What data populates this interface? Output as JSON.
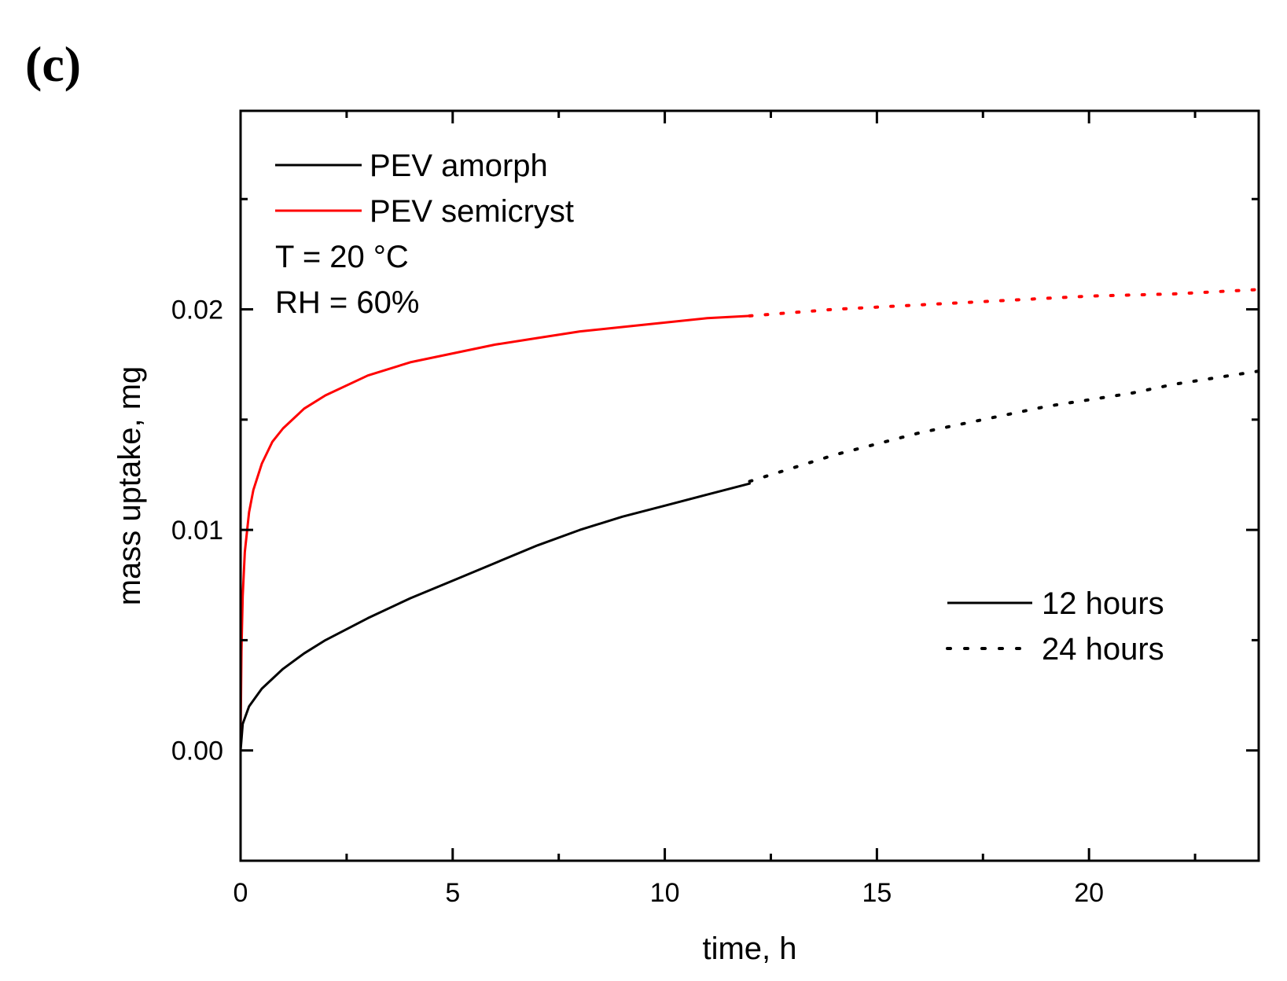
{
  "panel_label": "(c)",
  "chart_data": {
    "type": "line",
    "title": "",
    "xlabel": "time, h",
    "ylabel": "mass uptake, mg",
    "xlim": [
      0,
      24
    ],
    "ylim": [
      -0.005,
      0.029
    ],
    "x_ticks": [
      0,
      5,
      10,
      15,
      20
    ],
    "x_tick_labels": [
      "0",
      "5",
      "10",
      "15",
      "20"
    ],
    "x_minor_ticks": [
      2.5,
      7.5,
      12.5,
      17.5,
      22.5
    ],
    "y_ticks": [
      0.0,
      0.01,
      0.02
    ],
    "y_tick_labels": [
      "0.00",
      "0.01",
      "0.02"
    ],
    "y_minor_ticks": [
      0.005,
      0.015,
      0.025
    ],
    "grid": false,
    "series_legend": {
      "placement": "top-left",
      "entries": [
        {
          "name": "PEV amorph",
          "color": "#000000"
        },
        {
          "name": "PEV semicryst",
          "color": "#ff0000"
        }
      ]
    },
    "annotations": [
      "T = 20 °C",
      "RH = 60%"
    ],
    "style_legend": {
      "placement": "center-right",
      "entries": [
        {
          "name": "12 hours",
          "style": "solid"
        },
        {
          "name": "24 hours",
          "style": "dotted"
        }
      ]
    },
    "series": [
      {
        "name": "PEV amorph",
        "color": "#000000",
        "segments": [
          {
            "style": "solid",
            "x": [
              0,
              0.05,
              0.2,
              0.5,
              1,
              1.5,
              2,
              3,
              4,
              5,
              6,
              7,
              8,
              9,
              10,
              11,
              12
            ],
            "y": [
              0.0,
              0.0012,
              0.002,
              0.0028,
              0.0037,
              0.0044,
              0.005,
              0.006,
              0.0069,
              0.0077,
              0.0085,
              0.0093,
              0.01,
              0.0106,
              0.0111,
              0.0116,
              0.0121
            ]
          },
          {
            "style": "dotted",
            "x": [
              12,
              13,
              14,
              15,
              16,
              17,
              18,
              19,
              20,
              21,
              22,
              23,
              24
            ],
            "y": [
              0.0122,
              0.0128,
              0.0134,
              0.0139,
              0.0144,
              0.0148,
              0.0152,
              0.0156,
              0.0159,
              0.0162,
              0.0166,
              0.0169,
              0.0172
            ]
          }
        ]
      },
      {
        "name": "PEV semicryst",
        "color": "#ff0000",
        "segments": [
          {
            "style": "solid",
            "x": [
              0,
              0.02,
              0.05,
              0.1,
              0.2,
              0.3,
              0.5,
              0.75,
              1,
              1.5,
              2,
              3,
              4,
              5,
              6,
              7,
              8,
              9,
              10,
              11,
              12
            ],
            "y": [
              0.0005,
              0.0045,
              0.007,
              0.009,
              0.0108,
              0.0118,
              0.013,
              0.014,
              0.0146,
              0.0155,
              0.0161,
              0.017,
              0.0176,
              0.018,
              0.0184,
              0.0187,
              0.019,
              0.0192,
              0.0194,
              0.0196,
              0.0197
            ]
          },
          {
            "style": "dotted",
            "x": [
              12,
              14,
              16,
              18,
              20,
              22,
              24
            ],
            "y": [
              0.0197,
              0.02,
              0.0202,
              0.0204,
              0.0206,
              0.0207,
              0.0209
            ]
          }
        ]
      }
    ]
  }
}
